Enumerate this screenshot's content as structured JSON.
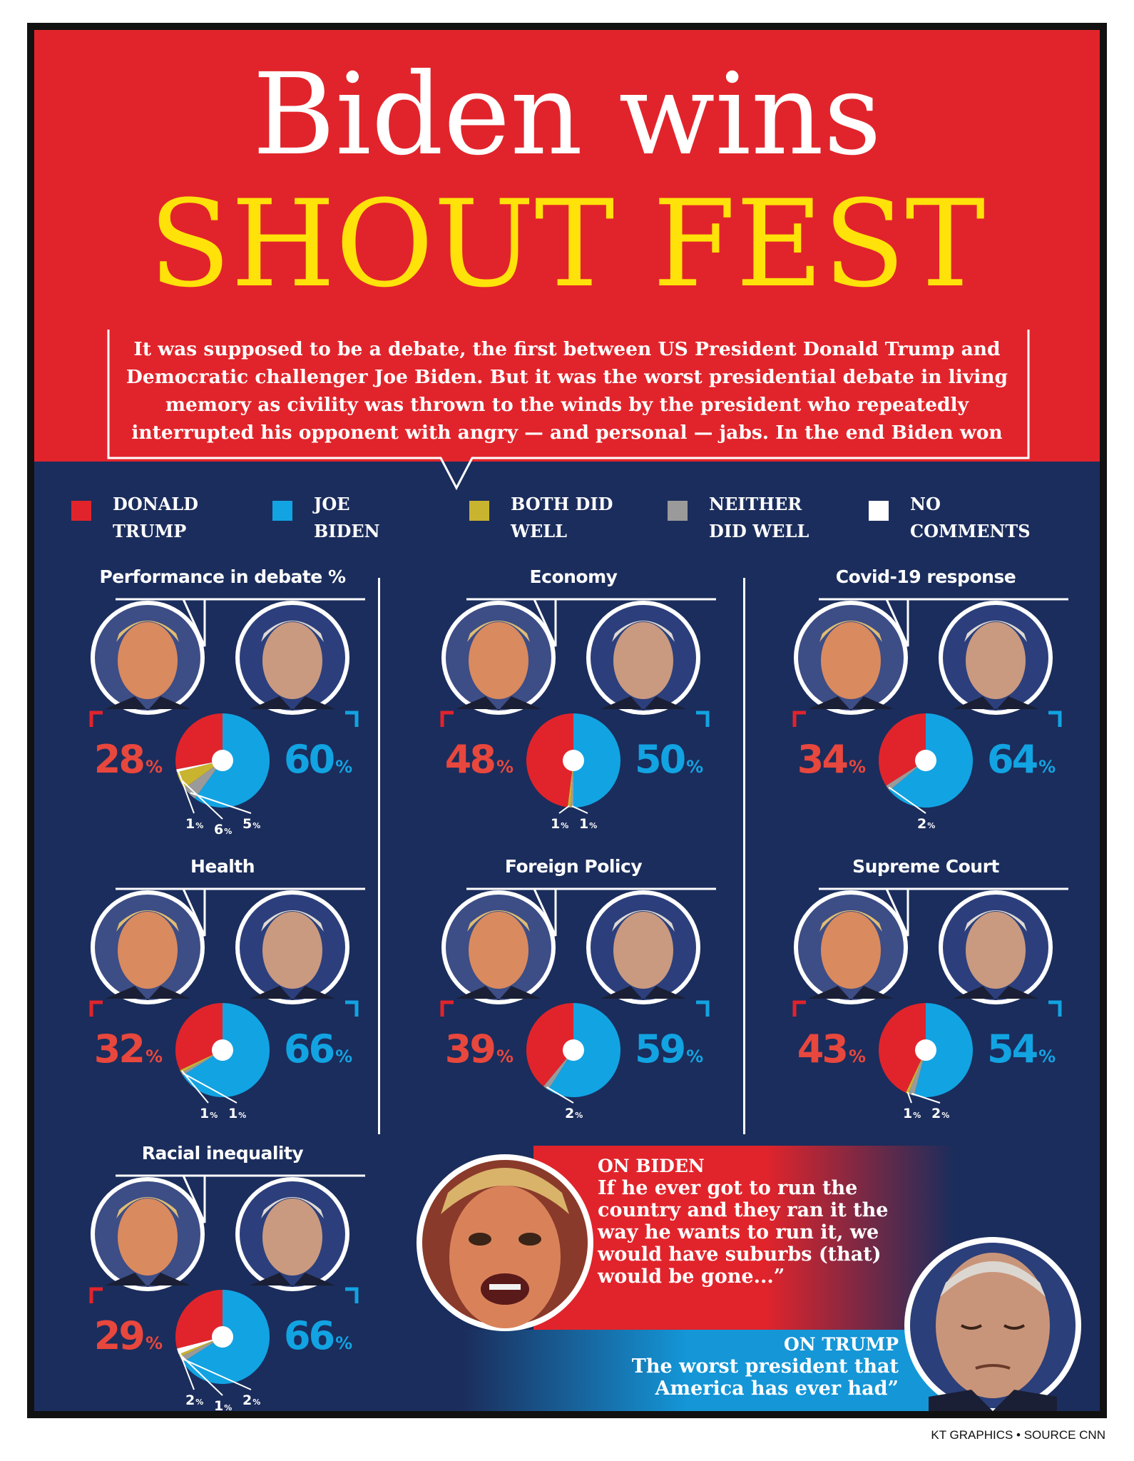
{
  "header": {
    "title_line1": "Biden wins",
    "title_line2": "SHOUT FEST",
    "intro": "It was supposed to be a debate, the first between US President Donald Trump and Democratic challenger Joe Biden. But it was the worst presidential debate in living memory as civility was thrown to the winds by the president who repeatedly interrupted his opponent with angry — and personal — jabs. In the end Biden won"
  },
  "colors": {
    "header_red": "#e1242b",
    "title_yellow": "#ffe20a",
    "navy": "#1b2d5c",
    "trump": "#e1242b",
    "biden": "#12a3e2",
    "both": "#c9b430",
    "neither": "#9a9a9a",
    "none": "#ffffff"
  },
  "legend": [
    {
      "key": "trump",
      "label": "DONALD\nTRUMP",
      "color": "#e1242b"
    },
    {
      "key": "biden",
      "label": "JOE\nBIDEN",
      "color": "#12a3e2"
    },
    {
      "key": "both",
      "label": "BOTH DID\nWELL",
      "color": "#c9b430"
    },
    {
      "key": "neither",
      "label": "NEITHER\nDID WELL",
      "color": "#9a9a9a"
    },
    {
      "key": "none",
      "label": "NO\nCOMMENTS",
      "color": "#ffffff"
    }
  ],
  "chart_data": [
    {
      "type": "pie",
      "title": "Performance in debate %",
      "values": {
        "trump": 28,
        "biden": 60,
        "both": 6,
        "neither": 5,
        "none": 1
      },
      "labels": {
        "trump": "28",
        "biden": "60",
        "small": [
          {
            "value": "1",
            "key": "none"
          },
          {
            "value": "6",
            "key": "both"
          },
          {
            "value": "5",
            "key": "neither"
          }
        ]
      }
    },
    {
      "type": "pie",
      "title": "Economy",
      "values": {
        "trump": 48,
        "biden": 50,
        "both": 1,
        "neither": 1,
        "none": 0
      },
      "labels": {
        "trump": "48",
        "biden": "50",
        "small": [
          {
            "value": "1",
            "key": "both"
          },
          {
            "value": "1",
            "key": "neither"
          }
        ]
      }
    },
    {
      "type": "pie",
      "title": "Covid-19 response",
      "values": {
        "trump": 34,
        "biden": 64,
        "both": 0,
        "neither": 2,
        "none": 0
      },
      "labels": {
        "trump": "34",
        "biden": "64",
        "small": [
          {
            "value": "2",
            "key": "neither"
          }
        ]
      }
    },
    {
      "type": "pie",
      "title": "Health",
      "values": {
        "trump": 32,
        "biden": 66,
        "both": 1,
        "neither": 1,
        "none": 0
      },
      "labels": {
        "trump": "32",
        "biden": "66",
        "small": [
          {
            "value": "1",
            "key": "both"
          },
          {
            "value": "1",
            "key": "neither"
          }
        ]
      }
    },
    {
      "type": "pie",
      "title": "Foreign Policy",
      "values": {
        "trump": 39,
        "biden": 59,
        "both": 0,
        "neither": 2,
        "none": 0
      },
      "labels": {
        "trump": "39",
        "biden": "59",
        "small": [
          {
            "value": "2",
            "key": "neither"
          }
        ]
      }
    },
    {
      "type": "pie",
      "title": "Supreme Court",
      "values": {
        "trump": 43,
        "biden": 54,
        "both": 1,
        "neither": 2,
        "none": 0
      },
      "labels": {
        "trump": "43",
        "biden": "54",
        "small": [
          {
            "value": "1",
            "key": "both"
          },
          {
            "value": "2",
            "key": "neither"
          }
        ]
      }
    },
    {
      "type": "pie",
      "title": "Racial inequality",
      "values": {
        "trump": 29,
        "biden": 66,
        "both": 1,
        "neither": 2,
        "none": 2
      },
      "labels": {
        "trump": "29",
        "biden": "66",
        "small": [
          {
            "value": "2",
            "key": "none"
          },
          {
            "value": "1",
            "key": "both"
          },
          {
            "value": "2",
            "key": "neither"
          }
        ]
      }
    }
  ],
  "percent_sign": "%",
  "quotes": {
    "on_biden": {
      "heading": "ON BIDEN",
      "text": "If he ever got to run the country and they ran it the way he wants to run it, we would have suburbs (that) would be gone...”"
    },
    "on_trump": {
      "heading": "ON TRUMP",
      "text": "The worst president that America has ever had”"
    }
  },
  "credit": "KT GRAPHICS • SOURCE CNN"
}
